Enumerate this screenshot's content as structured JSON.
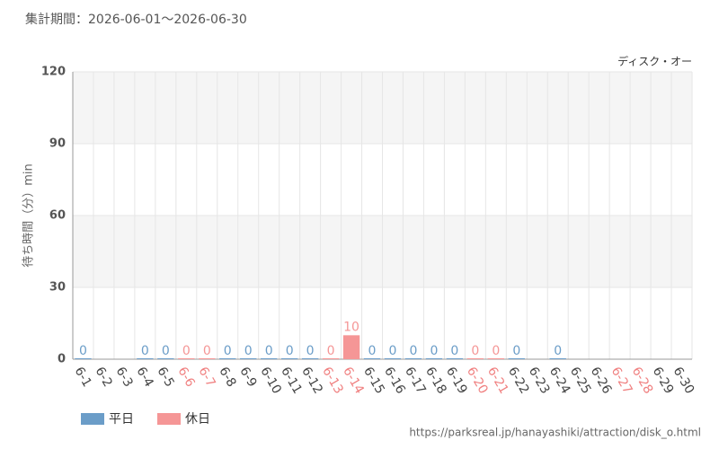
{
  "chart_data": {
    "type": "bar",
    "title": "集計期間：2026-06-01～2026-06-30",
    "subtitle": "ディスク・オー",
    "y_label": "待ち時間（分）min",
    "source": "https://parksreal.jp/hanayashiki/attraction/disk_o.html",
    "categories": [
      "6-1",
      "6-2",
      "6-3",
      "6-4",
      "6-5",
      "6-6",
      "6-7",
      "6-8",
      "6-9",
      "6-10",
      "6-11",
      "6-12",
      "6-13",
      "6-14",
      "6-15",
      "6-16",
      "6-17",
      "6-18",
      "6-19",
      "6-20",
      "6-21",
      "6-22",
      "6-23",
      "6-24",
      "6-25",
      "6-26",
      "6-27",
      "6-28",
      "6-29",
      "6-30"
    ],
    "category_colors": [
      "#444",
      "#444",
      "#444",
      "#444",
      "#444",
      "#f08080",
      "#f08080",
      "#444",
      "#444",
      "#444",
      "#444",
      "#444",
      "#f08080",
      "#f08080",
      "#444",
      "#444",
      "#444",
      "#444",
      "#444",
      "#f08080",
      "#f08080",
      "#444",
      "#444",
      "#444",
      "#444",
      "#444",
      "#f08080",
      "#f08080",
      "#444",
      "#444"
    ],
    "series": [
      {
        "name": "平日",
        "color": "#6b9dc8",
        "values": [
          0,
          null,
          null,
          0,
          0,
          null,
          null,
          0,
          0,
          0,
          0,
          0,
          null,
          null,
          0,
          0,
          0,
          0,
          0,
          null,
          null,
          0,
          null,
          0,
          null,
          null,
          null,
          null,
          null,
          null
        ]
      },
      {
        "name": "休日",
        "color": "#f59696",
        "values": [
          null,
          null,
          null,
          null,
          null,
          0,
          0,
          null,
          null,
          null,
          null,
          null,
          0,
          10,
          null,
          null,
          null,
          null,
          null,
          0,
          0,
          null,
          null,
          null,
          null,
          null,
          null,
          null,
          null,
          null
        ]
      }
    ],
    "ylim": [
      0,
      120
    ],
    "yticks": [
      0,
      30,
      60,
      90,
      120
    ],
    "grid": true,
    "legend": "bottom-left"
  }
}
